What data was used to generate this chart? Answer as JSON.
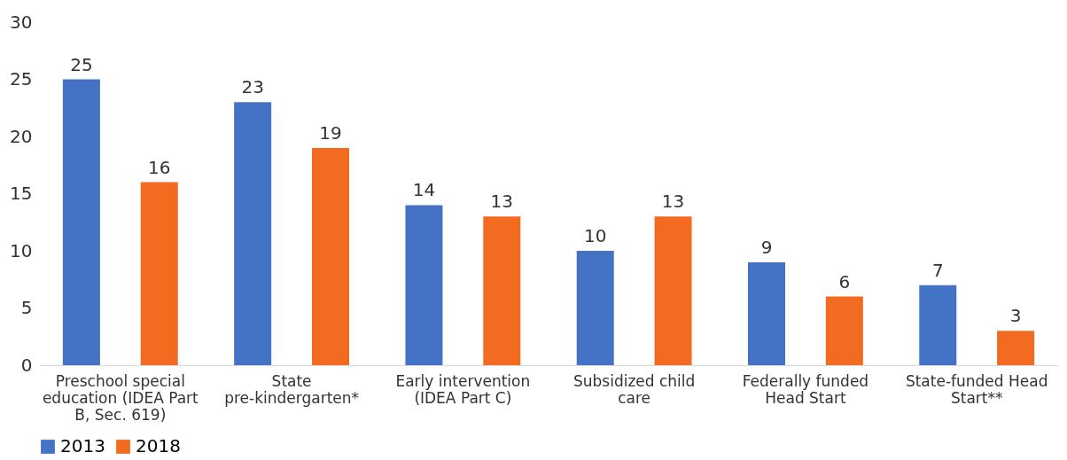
{
  "chart_data": {
    "type": "bar",
    "categories": [
      "Preschool special education (IDEA Part B, Sec. 619)",
      "State pre-kindergarten*",
      "Early intervention (IDEA Part C)",
      "Subsidized child care",
      "Federally funded Head Start",
      "State-funded Head Start**"
    ],
    "series": [
      {
        "name": "2013",
        "color": "#4472c4",
        "values": [
          25,
          23,
          14,
          10,
          9,
          7
        ]
      },
      {
        "name": "2018",
        "color": "#f26b21",
        "values": [
          16,
          19,
          13,
          13,
          6,
          3
        ]
      }
    ],
    "ylim": [
      0,
      30
    ],
    "yticks": [
      0,
      5,
      10,
      15,
      20,
      25,
      30
    ],
    "grid": false,
    "legend": "bottom",
    "data_labels": true
  }
}
